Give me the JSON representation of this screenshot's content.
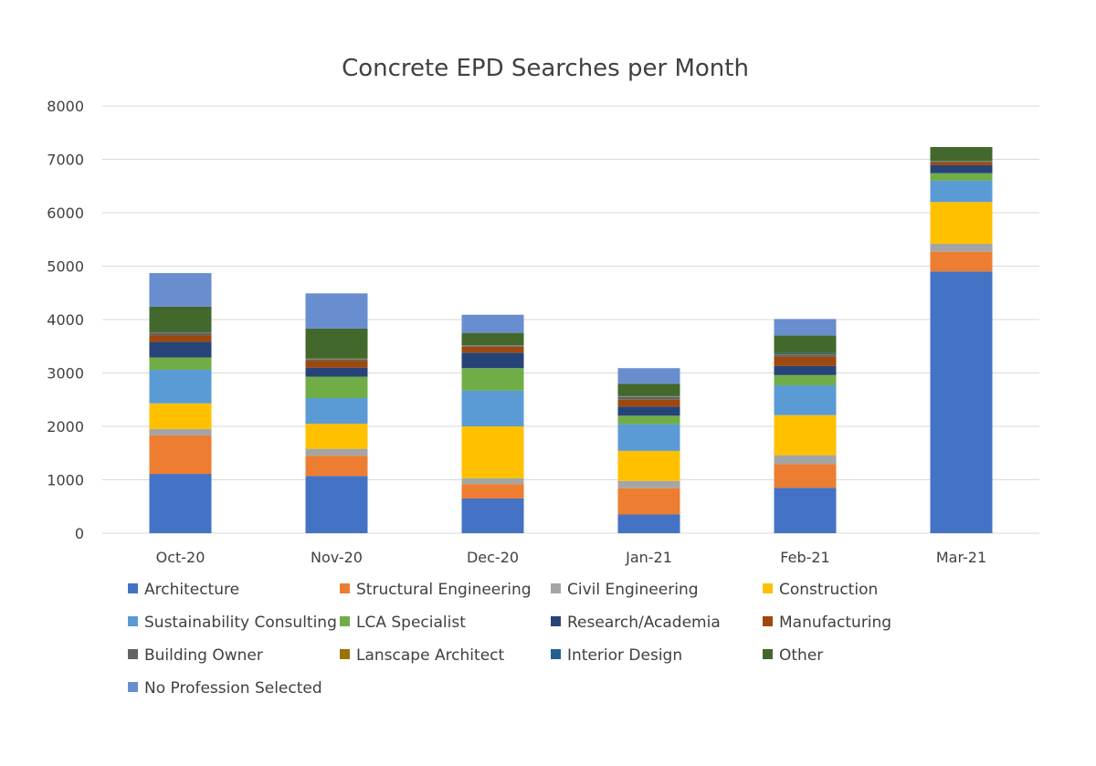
{
  "chart_data": {
    "type": "bar",
    "stacked": true,
    "title": "Concrete EPD Searches per Month",
    "xlabel": "",
    "ylabel": "",
    "ylim": [
      0,
      8000
    ],
    "yticks": [
      0,
      1000,
      2000,
      3000,
      4000,
      5000,
      6000,
      7000,
      8000
    ],
    "grid": true,
    "legend_position": "bottom",
    "categories": [
      "Oct-20",
      "Nov-20",
      "Dec-20",
      "Jan-21",
      "Feb-21",
      "Mar-21"
    ],
    "series": [
      {
        "name": "Architecture",
        "color": "#4472C4",
        "values": [
          1110,
          1070,
          650,
          350,
          850,
          4900
        ]
      },
      {
        "name": "Structural Engineering",
        "color": "#ED7D31",
        "values": [
          720,
          380,
          270,
          490,
          440,
          370
        ]
      },
      {
        "name": "Civil Engineering",
        "color": "#A5A5A5",
        "values": [
          120,
          130,
          110,
          140,
          170,
          150
        ]
      },
      {
        "name": "Construction",
        "color": "#FFC000",
        "values": [
          480,
          470,
          970,
          560,
          750,
          780
        ]
      },
      {
        "name": "Sustainability Consulting",
        "color": "#5B9BD5",
        "values": [
          630,
          480,
          670,
          500,
          560,
          400
        ]
      },
      {
        "name": "LCA Specialist",
        "color": "#70AD47",
        "values": [
          230,
          400,
          420,
          160,
          190,
          140
        ]
      },
      {
        "name": "Research/Academia",
        "color": "#264478",
        "values": [
          290,
          170,
          290,
          170,
          170,
          150
        ]
      },
      {
        "name": "Manufacturing",
        "color": "#9E480E",
        "values": [
          120,
          130,
          110,
          130,
          170,
          50
        ]
      },
      {
        "name": "Building Owner",
        "color": "#636363",
        "values": [
          50,
          20,
          20,
          50,
          40,
          10
        ]
      },
      {
        "name": "Lanscape Architect",
        "color": "#997300",
        "values": [
          10,
          10,
          10,
          10,
          10,
          10
        ]
      },
      {
        "name": "Interior Design",
        "color": "#255E91",
        "values": [
          10,
          10,
          10,
          10,
          20,
          10
        ]
      },
      {
        "name": "Other",
        "color": "#43682B",
        "values": [
          470,
          560,
          220,
          230,
          330,
          260
        ]
      },
      {
        "name": "No Profession Selected",
        "color": "#698ED0",
        "values": [
          630,
          660,
          340,
          290,
          310,
          0
        ]
      }
    ]
  }
}
